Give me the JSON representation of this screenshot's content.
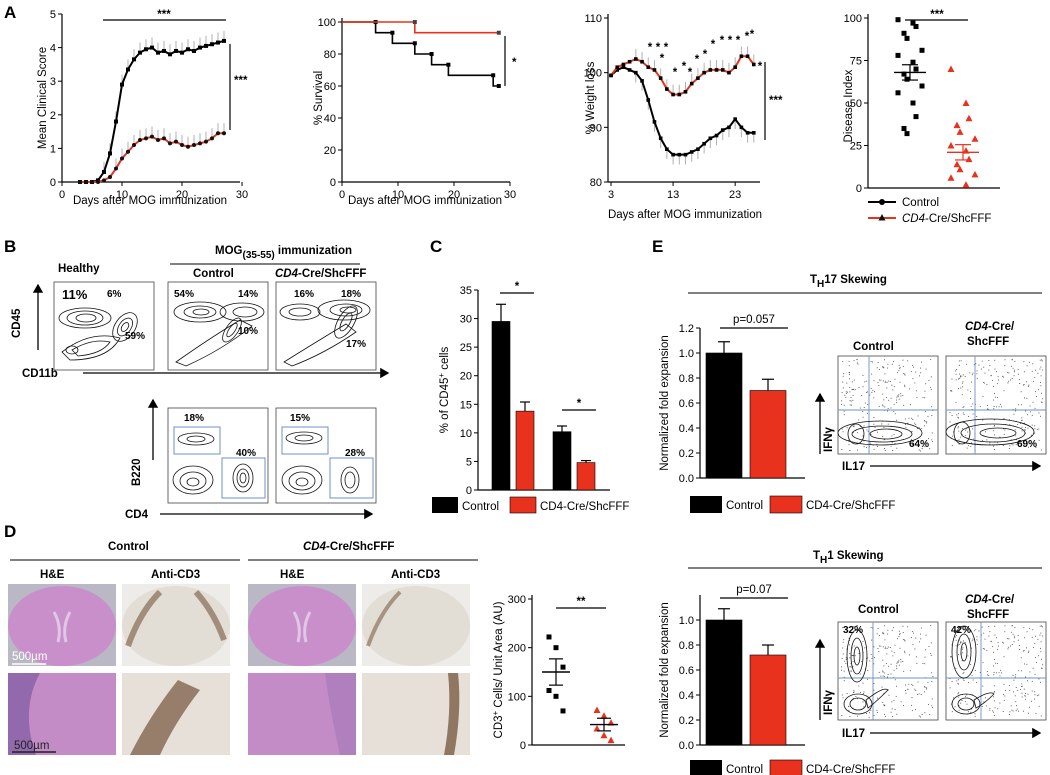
{
  "panel_labels": {
    "A": "A",
    "B": "B",
    "C": "C",
    "D": "D",
    "E": "E"
  },
  "colors": {
    "control": "#000000",
    "shcfff": "#e8321e",
    "error": "#b0b0b0",
    "gate": "#6f8fc9",
    "he_tissue": "#c98fcb",
    "cd3_tissue": "#e2ddd5"
  },
  "legend": {
    "control": "Control",
    "shcfff_prefix": "CD4",
    "shcfff_suffix": "-Cre/ShcFFF",
    "shcfff_plain": "CD4-Cre/ShcFFF"
  },
  "chart_data": [
    {
      "id": "A1",
      "type": "line",
      "xlabel": "Days after MOG immunization",
      "ylabel": "Mean Clinical Score",
      "xlim": [
        0,
        30
      ],
      "ylim": [
        0,
        5
      ],
      "xticks": [
        "0",
        "10",
        "20",
        "30"
      ],
      "yticks": [
        "0",
        "1",
        "2",
        "3",
        "4",
        "5"
      ],
      "x": [
        3,
        4,
        5,
        6,
        7,
        8,
        9,
        10,
        11,
        12,
        13,
        14,
        15,
        16,
        17,
        18,
        19,
        20,
        21,
        22,
        23,
        24,
        25,
        26,
        27
      ],
      "series": [
        {
          "name": "Control",
          "values": [
            0,
            0,
            0,
            0.05,
            0.3,
            0.85,
            1.8,
            2.9,
            3.35,
            3.65,
            3.85,
            3.95,
            4.0,
            3.85,
            3.9,
            3.8,
            3.9,
            3.85,
            3.95,
            3.9,
            4.0,
            4.05,
            4.1,
            4.15,
            4.2
          ],
          "err": 0.3
        },
        {
          "name": "CD4-Cre/ShcFFF",
          "values": [
            0,
            0,
            0,
            0,
            0.05,
            0.15,
            0.4,
            0.7,
            0.9,
            1.1,
            1.25,
            1.3,
            1.35,
            1.25,
            1.3,
            1.15,
            1.2,
            1.1,
            1.05,
            1.1,
            1.15,
            1.2,
            1.3,
            1.45,
            1.45
          ],
          "err": 0.3
        }
      ],
      "annotations": [
        "***",
        "***"
      ]
    },
    {
      "id": "A2",
      "type": "line",
      "xlabel": "Days after MOG immunization",
      "ylabel": "% Survival",
      "xlim": [
        0,
        30
      ],
      "ylim": [
        0,
        100
      ],
      "xticks": [
        "0",
        "10",
        "20",
        "30"
      ],
      "yticks": [
        "0",
        "20",
        "40",
        "60",
        "80",
        "100"
      ],
      "series": [
        {
          "name": "Control",
          "x": [
            0,
            6,
            6,
            9,
            9,
            13,
            13,
            16,
            16,
            19,
            19,
            27,
            27,
            28
          ],
          "values": [
            100,
            100,
            93.3,
            93.3,
            86.7,
            86.7,
            80,
            80,
            73.3,
            73.3,
            66.7,
            66.7,
            60,
            60
          ]
        },
        {
          "name": "CD4-Cre/ShcFFF",
          "x": [
            0,
            13,
            13,
            28
          ],
          "values": [
            100,
            100,
            93.3,
            93.3
          ]
        }
      ],
      "annotations": [
        "*"
      ]
    },
    {
      "id": "A3",
      "type": "line",
      "xlabel": "Days after MOG immunization",
      "ylabel": "% Weight loss",
      "xlim": [
        3,
        27
      ],
      "ylim": [
        80,
        110
      ],
      "xticks": [
        "3",
        "13",
        "23"
      ],
      "yticks": [
        "80",
        "90",
        "100",
        "110"
      ],
      "x": [
        3,
        4,
        5,
        6,
        7,
        8,
        9,
        10,
        11,
        12,
        13,
        14,
        15,
        16,
        17,
        18,
        19,
        20,
        21,
        22,
        23,
        24,
        25,
        26
      ],
      "series": [
        {
          "name": "Control",
          "values": [
            99.5,
            100.5,
            101,
            100.5,
            100,
            98.5,
            95,
            91,
            88,
            86,
            85,
            85,
            85,
            85.5,
            86,
            87,
            88,
            88.5,
            89.5,
            90,
            91.5,
            90,
            89,
            89
          ],
          "err": 1.8
        },
        {
          "name": "CD4-Cre/ShcFFF",
          "values": [
            99.5,
            101,
            101.5,
            102,
            102.5,
            102,
            101,
            100.5,
            99,
            97,
            96,
            96,
            96.5,
            98,
            99,
            100,
            100.5,
            100.5,
            100.5,
            100,
            101,
            103,
            103,
            101.5
          ],
          "err": 1.8
        }
      ],
      "annotations": [
        "*",
        "*",
        "*",
        "*",
        "*",
        "*",
        "*",
        "*",
        "*",
        "*",
        "*",
        "*",
        "*",
        "*",
        "*",
        "***"
      ]
    },
    {
      "id": "A4",
      "type": "scatter",
      "ylabel": "Disease Index",
      "ylim": [
        0,
        100
      ],
      "yticks": [
        "0",
        "25",
        "50",
        "75",
        "100"
      ],
      "series": [
        {
          "name": "Control",
          "values": [
            99,
            97,
            95,
            91,
            88,
            81,
            78,
            74,
            70,
            67,
            64,
            60,
            56,
            50,
            42,
            35,
            32
          ],
          "mean": 68,
          "sem": 4.5
        },
        {
          "name": "CD4-Cre/ShcFFF",
          "values": [
            70,
            50,
            41,
            37,
            33,
            29,
            25,
            22,
            17,
            14,
            11,
            8,
            6,
            2
          ],
          "mean": 21,
          "sem": 4.5
        }
      ],
      "annotations": [
        "***"
      ]
    },
    {
      "id": "C",
      "type": "bar",
      "ylabel": "% of CD45+ cells",
      "ylabel_main": "% of CD45",
      "ylabel_sup": "+",
      "ylabel_tail": " cells",
      "ylim": [
        0,
        35
      ],
      "yticks": [
        "0",
        "5",
        "10",
        "15",
        "20",
        "25",
        "30",
        "35"
      ],
      "groups": 2,
      "series": [
        {
          "name": "Control",
          "values": [
            29.5,
            10.2
          ],
          "err": [
            3,
            1
          ]
        },
        {
          "name": "CD4-Cre/ShcFFF",
          "values": [
            13.8,
            4.8
          ],
          "err": [
            1.6,
            0.35
          ]
        }
      ],
      "annotations": [
        "*",
        "*"
      ]
    },
    {
      "id": "D",
      "type": "scatter",
      "ylabel": "CD3+ Cells/ Unit Area (AU)",
      "ylabel_main": "CD3",
      "ylabel_sup": "+",
      "ylabel_tail": " Cells/ Unit Area (AU)",
      "ylim": [
        0,
        300
      ],
      "yticks": [
        "0",
        "100",
        "200",
        "300"
      ],
      "series": [
        {
          "name": "Control",
          "values": [
            222,
            200,
            160,
            112,
            100,
            70
          ],
          "mean": 150,
          "sem": 27
        },
        {
          "name": "CD4-Cre/ShcFFF",
          "values": [
            72,
            60,
            46,
            34,
            20,
            10
          ],
          "mean": 42,
          "sem": 13
        }
      ],
      "annotations": [
        "**"
      ]
    },
    {
      "id": "E1",
      "type": "bar",
      "ylabel": "Normalized fold expansion",
      "ylim": [
        0,
        1.2
      ],
      "yticks": [
        "0.0",
        "0.2",
        "0.4",
        "0.6",
        "0.8",
        "1.0",
        "1.2"
      ],
      "series": [
        {
          "name": "Control",
          "values": [
            1.0
          ],
          "err": [
            0.09
          ]
        },
        {
          "name": "CD4-Cre/ShcFFF",
          "values": [
            0.7
          ],
          "err": [
            0.09
          ]
        }
      ],
      "annotations": [
        "p=0.057"
      ]
    },
    {
      "id": "E2",
      "type": "bar",
      "ylabel": "Normalized fold expansion",
      "ylim": [
        0,
        1.2
      ],
      "yticks": [
        "0.0",
        "0.2",
        "0.4",
        "0.6",
        "0.8",
        "1.0"
      ],
      "series": [
        {
          "name": "Control",
          "values": [
            1.0
          ],
          "err": [
            0.09
          ]
        },
        {
          "name": "CD4-Cre/ShcFFF",
          "values": [
            0.72
          ],
          "err": [
            0.08
          ]
        }
      ],
      "annotations": [
        "p=0.07"
      ]
    }
  ],
  "flow_B": {
    "title_main": "MOG",
    "title_sub": "(35-55)",
    "title_tail": " immunization",
    "col_healthy": "Healthy",
    "col_control": "Control",
    "col_shc_prefix": "CD4",
    "col_shc_suffix": "-Cre/ShcFFF",
    "top_ylabel": "CD45",
    "top_xlabel": "CD11b",
    "bot_ylabel": "B220",
    "bot_xlabel": "CD4",
    "healthy": [
      "11%",
      "6%",
      "59%"
    ],
    "control_top": [
      "54%",
      "14%",
      "10%"
    ],
    "shc_top": [
      "16%",
      "18%",
      "17%"
    ],
    "control_bot": [
      "18%",
      "40%"
    ],
    "shc_bot": [
      "15%",
      "28%"
    ]
  },
  "histology_D": {
    "group_control": "Control",
    "group_shc_prefix": "CD4",
    "group_shc_suffix": "-Cre/ShcFFF",
    "he": "H&E",
    "cd3": "Anti-CD3",
    "scale_top": "500µm",
    "scale_bottom": "500µm"
  },
  "flow_E": {
    "th17_main": "T",
    "th17_sub": "H",
    "th17_tail": "17 Skewing",
    "th1_main": "T",
    "th1_sub": "H",
    "th1_tail": "1 Skewing",
    "control": "Control",
    "shc_line1_prefix": "CD4",
    "shc_line1_suffix": "-Cre/",
    "shc_line2": "ShcFFF",
    "ylabel": "IFNγ",
    "xlabel": "IL17",
    "th17_control": "64%",
    "th17_shc": "69%",
    "th1_control": "32%",
    "th1_shc": "42%"
  }
}
